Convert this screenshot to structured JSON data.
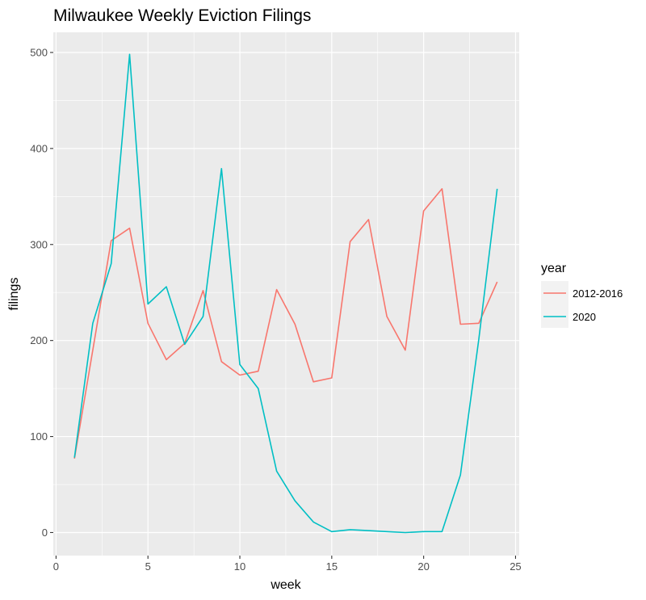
{
  "chart_data": {
    "type": "line",
    "title": "Milwaukee Weekly Eviction Filings",
    "xlabel": "week",
    "ylabel": "filings",
    "xlim": [
      -0.15,
      25.2
    ],
    "ylim": [
      -24,
      521
    ],
    "x_ticks": [
      0,
      5,
      10,
      15,
      20,
      25
    ],
    "y_ticks": [
      0,
      100,
      200,
      300,
      400,
      500
    ],
    "grid": true,
    "legend_position": "right",
    "legend_title": "year",
    "x": [
      1,
      2,
      3,
      4,
      5,
      6,
      7,
      8,
      9,
      10,
      11,
      12,
      13,
      14,
      15,
      16,
      17,
      18,
      19,
      20,
      21,
      22,
      23,
      24
    ],
    "series": [
      {
        "name": "2012-2016",
        "color": "#F8766D",
        "values": [
          77,
          190,
          304,
          317,
          218,
          180,
          197,
          252,
          178,
          164,
          168,
          253,
          217,
          157,
          161,
          303,
          326,
          225,
          190,
          335,
          358,
          217,
          218,
          261
        ]
      },
      {
        "name": "2020",
        "color": "#00BFC4",
        "values": [
          78,
          218,
          280,
          498,
          238,
          256,
          196,
          225,
          379,
          175,
          150,
          64,
          33,
          11,
          1,
          3,
          2,
          1,
          0,
          1,
          1,
          60,
          201,
          358
        ]
      }
    ]
  },
  "colors": {
    "panel_bg": "#EBEBEB",
    "grid_major": "#FFFFFF",
    "legend_key_bg": "#F2F2F2"
  }
}
